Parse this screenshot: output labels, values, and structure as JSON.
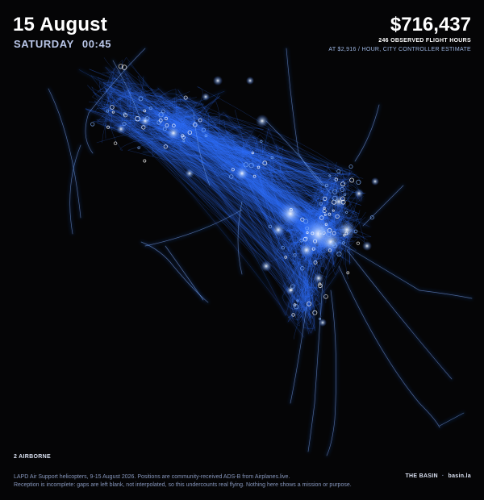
{
  "header": {
    "date": "15 August",
    "weekday": "SATURDAY",
    "time": "00:45"
  },
  "cost": {
    "amount": "$716,437",
    "hours_line": "246 OBSERVED FLIGHT HOURS",
    "rate_line": "AT $2,916 / HOUR, CITY CONTROLLER ESTIMATE"
  },
  "status": {
    "airborne": "2 AIRBORNE"
  },
  "footer": {
    "note_line1": "LAPD Air Support helicopters, 9-15 August 2026. Positions are community-received ADS-B from Airplanes.live.",
    "note_line2": "Reception is incomplete: gaps are left blank, not interpolated, so this undercounts real flying. Nothing here shows a mission or purpose.",
    "brand": "THE BASIN",
    "site": "basin.la"
  },
  "colors": {
    "background": "#050506",
    "track": "#2f6fff",
    "track_glow": "#7fb0ff",
    "hotspot": "#ffffff"
  }
}
